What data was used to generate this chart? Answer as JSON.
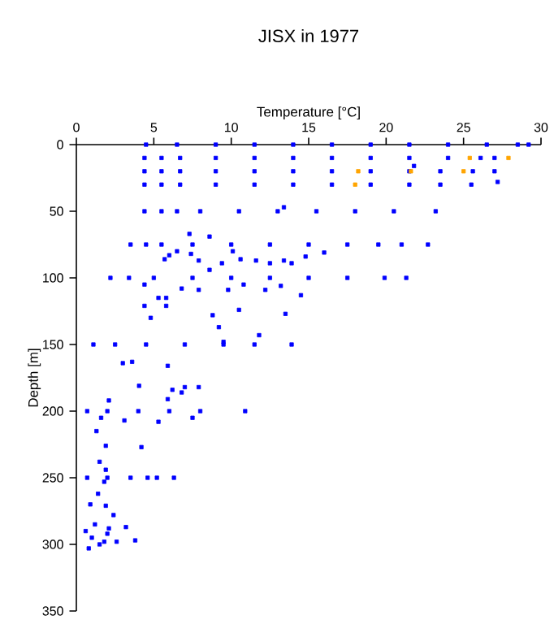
{
  "chart_data": {
    "type": "scatter",
    "title": "JISX in 1977",
    "xlabel": "Temperature [°C]",
    "ylabel": "Depth [m]",
    "xlim": [
      0,
      30
    ],
    "xticks": [
      0,
      5,
      10,
      15,
      20,
      25,
      30
    ],
    "ylim": [
      350,
      0
    ],
    "yticks": [
      0,
      50,
      100,
      150,
      200,
      250,
      300,
      350
    ],
    "marker": "square",
    "series": [
      {
        "color": "#0000ff",
        "x": [
          4.5,
          6.5,
          9,
          11.5,
          14,
          16.5,
          19,
          21.5,
          24,
          26.5,
          28.5,
          29.2,
          4.4,
          5.5,
          6.7,
          9,
          11.5,
          14,
          16.5,
          19,
          21.5,
          24,
          26.1,
          27,
          4.4,
          5.5,
          6.7,
          9,
          11.5,
          14,
          16.5,
          19,
          21.5,
          23.5,
          25.6,
          27,
          21.8,
          4.4,
          5.5,
          6.7,
          9,
          11.5,
          14,
          16.5,
          19,
          21.5,
          23.5,
          25.5,
          27.2,
          4.4,
          5.5,
          6.5,
          8,
          10.5,
          13,
          15.5,
          18,
          20.5,
          23.2,
          13.4,
          3.5,
          4.5,
          5.5,
          7.5,
          10,
          12.5,
          15,
          17.5,
          19.5,
          21,
          22.7,
          7.3,
          8.6,
          5.7,
          6.0,
          6.5,
          7.4,
          7.9,
          8.6,
          9.4,
          10.6,
          11.6,
          12.5,
          13.4,
          13.9,
          14.8,
          16.0,
          10.1,
          2.2,
          3.4,
          5,
          7.5,
          10,
          12.5,
          15,
          17.5,
          19.9,
          21.3,
          4.4,
          6.8,
          7.9,
          9.8,
          10.8,
          12.2,
          13.2,
          14.5,
          5.3,
          5.8,
          4.4,
          5.8,
          4.8,
          10.5,
          13.5,
          8.8,
          9.2,
          11.8,
          9.5,
          1.1,
          2.5,
          4.5,
          7,
          9.5,
          11.5,
          13.9,
          3.0,
          3.6,
          5.9,
          4.05,
          7.9,
          7.0,
          6.8,
          6.2,
          5.9,
          2.1,
          0.7,
          2,
          4,
          6,
          8,
          10.9,
          7.5,
          5.3,
          3.1,
          1.6,
          1.3,
          1.9,
          4.2,
          1.5,
          1.9,
          0.7,
          2,
          3.5,
          4.6,
          5.2,
          6.3,
          1.8,
          1.4,
          0.9,
          1.9,
          2.4,
          3.2,
          2.1,
          2.6,
          3.8,
          0.6,
          1.0,
          1.5,
          2.0,
          0.8,
          1.2,
          1.8
        ],
        "values": [
          0,
          0,
          0,
          0,
          0,
          0,
          0,
          0,
          0,
          0,
          0,
          0,
          10,
          10,
          10,
          10,
          10,
          10,
          10,
          10,
          10,
          10,
          10,
          10,
          20,
          20,
          20,
          20,
          20,
          20,
          20,
          20,
          20,
          20,
          20,
          20,
          16,
          30,
          30,
          30,
          30,
          30,
          30,
          30,
          30,
          30,
          30,
          30,
          28,
          50,
          50,
          50,
          50,
          50,
          50,
          50,
          50,
          50,
          50,
          47,
          75,
          75,
          75,
          75,
          75,
          75,
          75,
          75,
          75,
          75,
          75,
          67,
          69,
          86,
          83,
          80,
          82,
          87,
          94,
          89,
          86,
          87,
          89,
          87,
          89,
          84,
          81,
          80,
          100,
          100,
          100,
          100,
          100,
          100,
          100,
          100,
          100,
          100,
          105,
          108,
          109,
          109,
          105,
          109,
          106,
          113,
          115,
          115,
          121,
          121,
          130,
          124,
          127,
          128,
          137,
          143,
          148,
          150,
          150,
          150,
          150,
          150,
          150,
          150,
          164,
          163,
          166,
          181,
          182,
          182,
          186,
          184,
          191,
          192,
          200,
          200,
          200,
          200,
          200,
          200,
          205,
          208,
          207,
          205,
          215,
          226,
          227,
          238,
          244,
          250,
          250,
          250,
          250,
          250,
          250,
          253,
          262,
          270,
          271,
          278,
          287,
          288,
          298,
          297,
          290,
          295,
          300,
          292,
          303,
          285,
          298
        ]
      },
      {
        "color": "#ffa500",
        "x": [
          25.4,
          27.9,
          18.2,
          21.6,
          25.0,
          18.0
        ],
        "values": [
          10,
          10,
          20,
          20,
          20,
          30
        ]
      }
    ]
  }
}
